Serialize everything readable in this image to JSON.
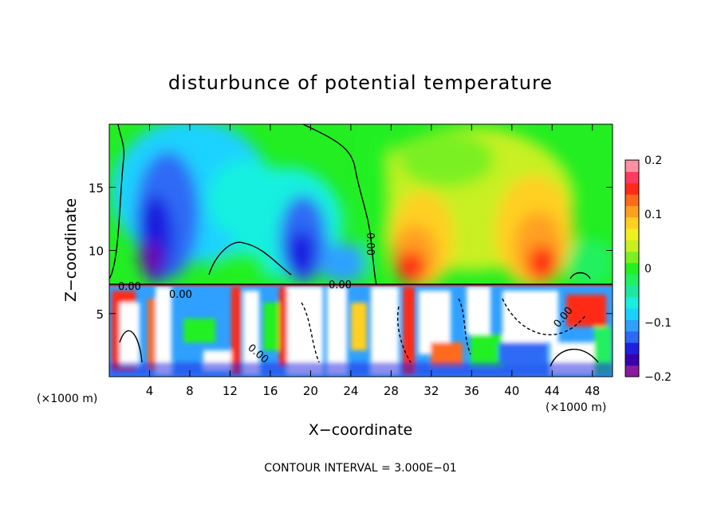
{
  "chart_data": {
    "type": "heatmap",
    "title": "disturbunce of potential temperature",
    "xlabel": "X−coordinate",
    "ylabel": "Z−coordinate",
    "x_unit_label_left": "(×1000 m)",
    "x_unit_label_right": "(×1000 m)",
    "xlim": [
      0,
      50
    ],
    "ylim": [
      0,
      20
    ],
    "x_ticks": [
      4,
      8,
      12,
      16,
      20,
      24,
      28,
      32,
      36,
      40,
      44,
      48
    ],
    "x_tick_labels": [
      "4",
      "8",
      "12",
      "16",
      "20",
      "24",
      "28",
      "32",
      "36",
      "40",
      "44",
      "48"
    ],
    "y_ticks": [
      5,
      10,
      15
    ],
    "y_tick_labels": [
      "5",
      "10",
      "15"
    ],
    "colorbar": {
      "range": [
        -0.2,
        0.2
      ],
      "ticks": [
        0.2,
        0.1,
        0,
        -0.1,
        -0.2
      ],
      "tick_labels": [
        "0.2",
        "0.1",
        "0",
        "−0.1",
        "−0.2"
      ],
      "colors": [
        "#8b1a9e",
        "#3a00b0",
        "#1f1fe0",
        "#2e6af5",
        "#2fa0ff",
        "#1ad2ff",
        "#17f0e0",
        "#1ee8a0",
        "#22f060",
        "#22f020",
        "#7af020",
        "#c8f020",
        "#f0f020",
        "#ffd020",
        "#ffa020",
        "#ff6a1a",
        "#ff2a18",
        "#ff3a60",
        "#ff90a0"
      ]
    },
    "contour_labels": [
      "0.00",
      "0.00",
      "0.00",
      "0.00",
      "0.00",
      "0.00"
    ],
    "footer": "CONTOUR INTERVAL = 3.000E−01"
  }
}
